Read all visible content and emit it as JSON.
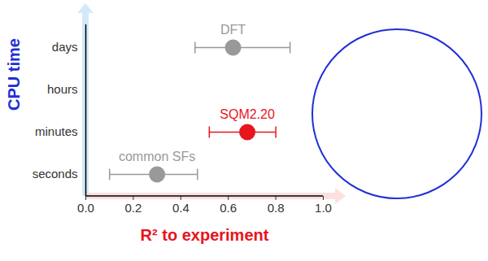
{
  "chart_data": {
    "type": "scatter",
    "x_label": "R² to experiment",
    "y_label": "CPU time",
    "categories": [
      "seconds",
      "minutes",
      "hours",
      "days"
    ],
    "values": [
      0.3,
      0.68,
      null,
      0.62
    ],
    "error_low": [
      0.1,
      0.52,
      null,
      0.46
    ],
    "error_high": [
      0.47,
      0.8,
      null,
      0.86
    ],
    "annotations": [
      "common SFs",
      "SQM2.20",
      null,
      "DFT"
    ],
    "colors": [
      "#999999",
      "#e8141e",
      null,
      "#999999"
    ],
    "xlim": [
      0,
      1
    ],
    "xticks": [
      {
        "value": 0,
        "label": "0.0"
      },
      {
        "value": 0.2,
        "label": "0.2"
      },
      {
        "value": 0.4,
        "label": "0.4"
      },
      {
        "value": 0.6,
        "label": "0.6"
      },
      {
        "value": 0.8,
        "label": "0.8"
      },
      {
        "value": 1,
        "label": "1.0"
      }
    ],
    "grid": false
  }
}
